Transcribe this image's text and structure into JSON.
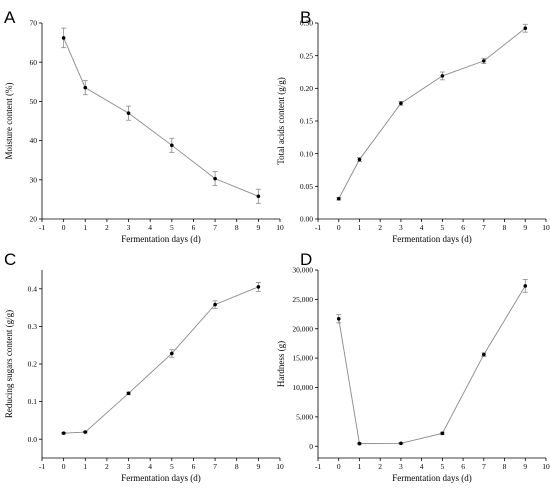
{
  "chart_data": [
    {
      "type": "line",
      "panel": "A",
      "xlabel": "Fermentation days (d)",
      "ylabel": "Moisture content (%)",
      "xlim": [
        -1,
        10
      ],
      "ylim": [
        20,
        70
      ],
      "xticks": [
        "-1",
        "0",
        "1",
        "2",
        "3",
        "4",
        "5",
        "6",
        "7",
        "8",
        "9",
        "10"
      ],
      "yticks": [
        "20",
        "30",
        "40",
        "50",
        "60",
        "70"
      ],
      "x": [
        0,
        1,
        3,
        5,
        7,
        9
      ],
      "y": [
        66.2,
        53.5,
        47.0,
        38.8,
        30.3,
        25.8
      ],
      "err": [
        2.5,
        1.8,
        1.8,
        1.8,
        1.8,
        1.8
      ]
    },
    {
      "type": "line",
      "panel": "B",
      "xlabel": "Fermentation days (d)",
      "ylabel": "Total acids content (g/g)",
      "xlim": [
        -1,
        10
      ],
      "ylim": [
        0,
        0.3
      ],
      "xticks": [
        "-1",
        "0",
        "1",
        "2",
        "3",
        "4",
        "5",
        "6",
        "7",
        "8",
        "9",
        "10"
      ],
      "yticks": [
        "0.00",
        "0.05",
        "0.10",
        "0.15",
        "0.20",
        "0.25",
        "0.30"
      ],
      "x": [
        0,
        1,
        3,
        5,
        7,
        9
      ],
      "y": [
        0.031,
        0.091,
        0.177,
        0.219,
        0.242,
        0.292
      ],
      "err": [
        0.002,
        0.003,
        0.003,
        0.006,
        0.004,
        0.006
      ]
    },
    {
      "type": "line",
      "panel": "C",
      "xlabel": "Fermentation days (d)",
      "ylabel": "Reducing sugars content (g/g)",
      "xlim": [
        -1,
        10
      ],
      "ylim": [
        -0.05,
        0.45
      ],
      "xticks": [
        "-1",
        "0",
        "1",
        "2",
        "3",
        "4",
        "5",
        "6",
        "7",
        "8",
        "9",
        "10"
      ],
      "yticks": [
        "0.0",
        "0.1",
        "0.2",
        "0.3",
        "0.4"
      ],
      "x": [
        0,
        1,
        3,
        5,
        7,
        9
      ],
      "y": [
        0.016,
        0.019,
        0.122,
        0.228,
        0.358,
        0.405
      ],
      "err": [
        0.002,
        0.002,
        0.003,
        0.01,
        0.01,
        0.012
      ]
    },
    {
      "type": "line",
      "panel": "D",
      "xlabel": "Fermentation days (d)",
      "ylabel": "Hardness (g)",
      "xlim": [
        -1,
        10
      ],
      "ylim": [
        -2000,
        30000
      ],
      "xticks": [
        "-1",
        "0",
        "1",
        "2",
        "3",
        "4",
        "5",
        "6",
        "7",
        "8",
        "9",
        "10"
      ],
      "yticks": [
        "0",
        "5,000",
        "10,000",
        "15,000",
        "20,000",
        "25,000",
        "30,000"
      ],
      "x": [
        0,
        1,
        3,
        5,
        7,
        9
      ],
      "y": [
        21700,
        450,
        500,
        2200,
        15600,
        27300
      ],
      "err": [
        700,
        100,
        100,
        200,
        300,
        1100
      ]
    }
  ]
}
